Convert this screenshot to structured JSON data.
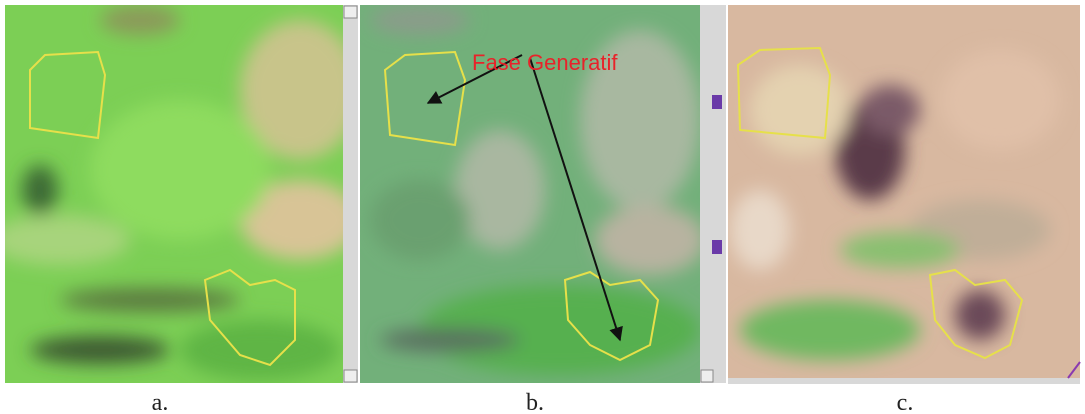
{
  "annotation": "Fase Generatif",
  "panels": [
    {
      "label": "a."
    },
    {
      "label": "b."
    },
    {
      "label": "c."
    }
  ]
}
